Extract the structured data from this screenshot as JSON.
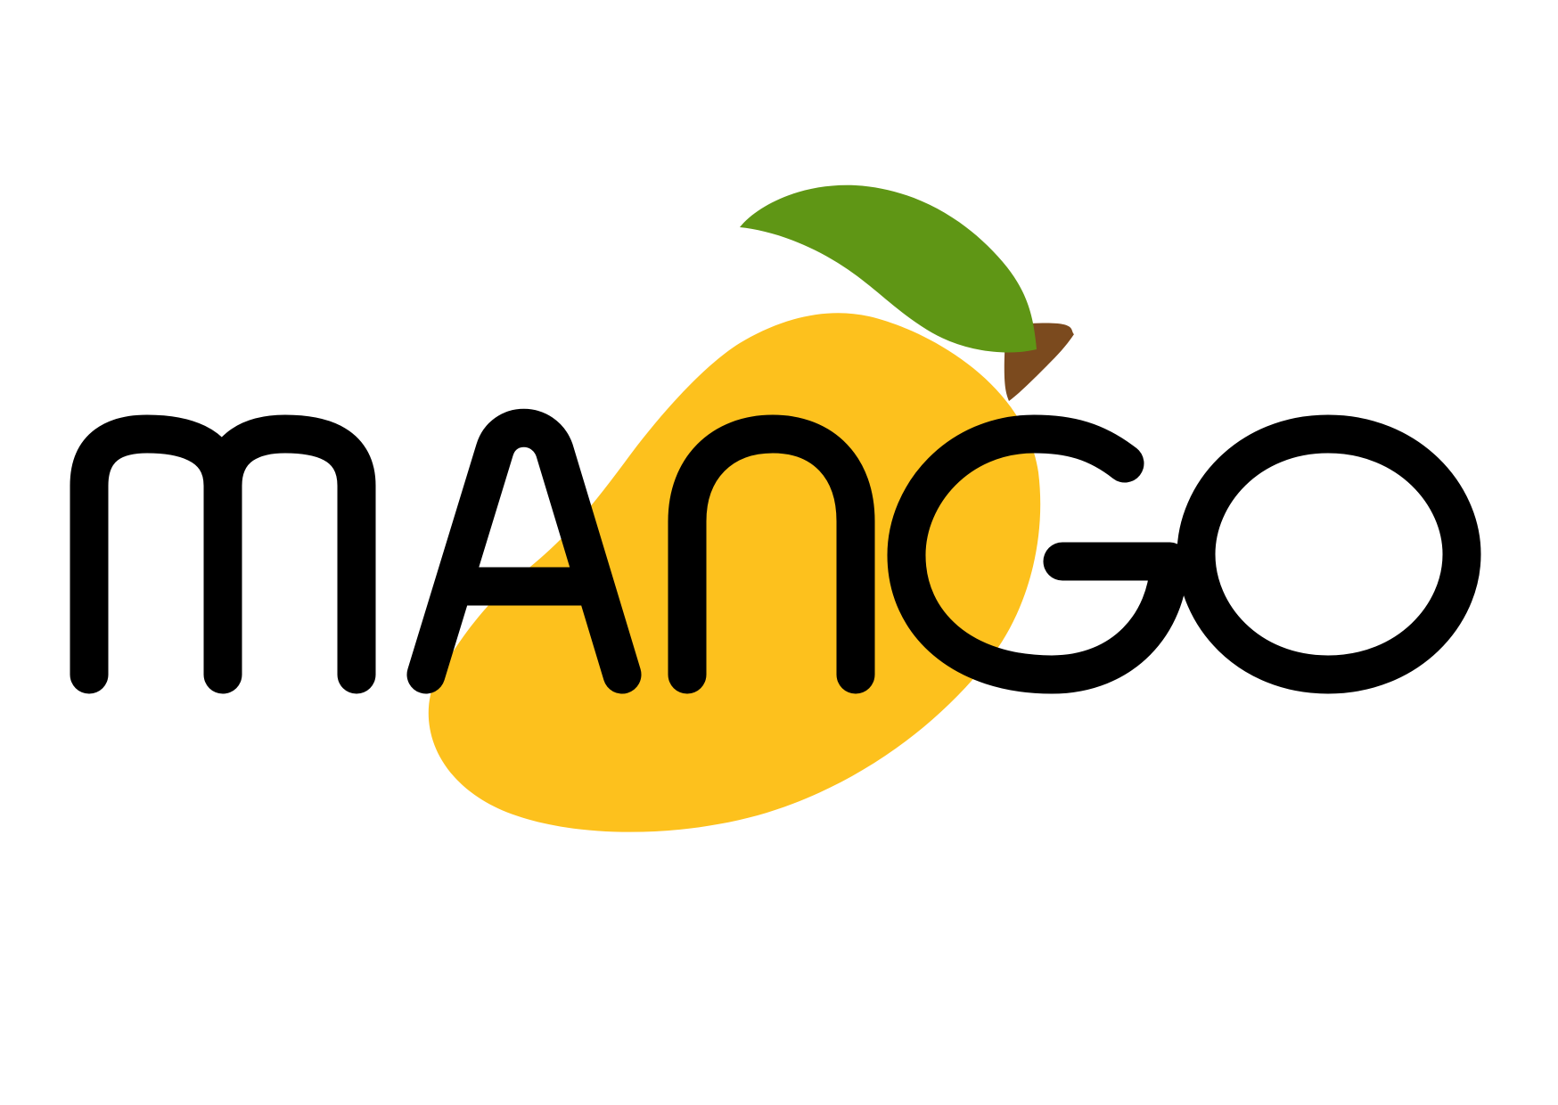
{
  "logo": {
    "word": "MANGO",
    "letters": [
      "M",
      "A",
      "N",
      "G",
      "O"
    ]
  },
  "colors": {
    "background": "#ffffff",
    "text": "#000000",
    "mango_body": "#fdc11d",
    "leaf": "#5f9615",
    "stem": "#7b4a1e"
  }
}
